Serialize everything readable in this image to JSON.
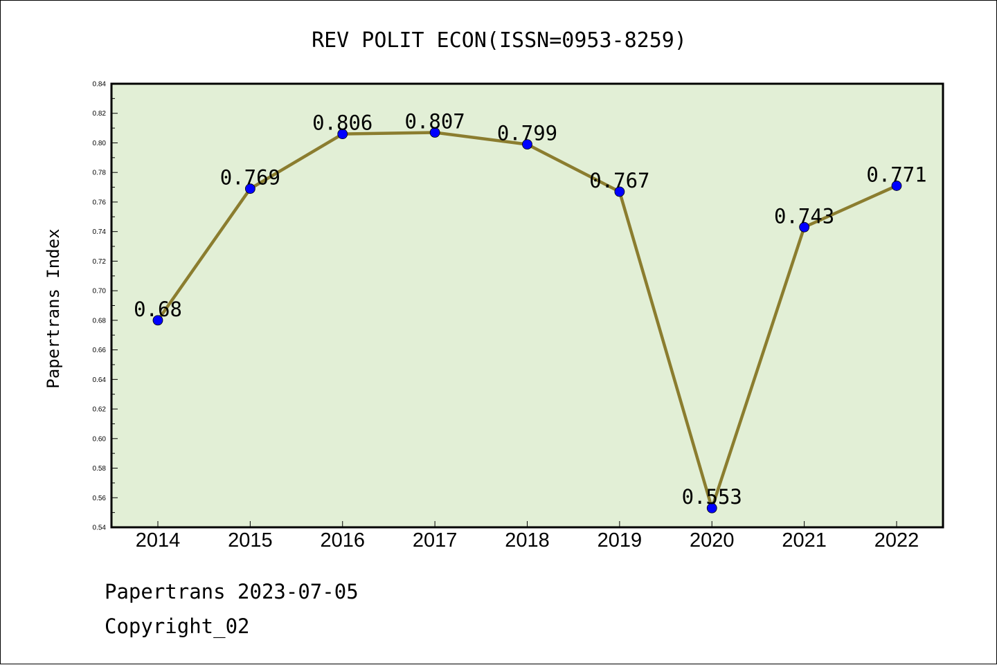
{
  "chart_data": {
    "type": "line",
    "title": "REV POLIT ECON(ISSN=0953-8259)",
    "xlabel": "",
    "ylabel": "Papertrans Index",
    "categories": [
      "2014",
      "2015",
      "2016",
      "2017",
      "2018",
      "2019",
      "2020",
      "2021",
      "2022"
    ],
    "values": [
      0.68,
      0.769,
      0.806,
      0.807,
      0.799,
      0.767,
      0.553,
      0.743,
      0.771
    ],
    "data_labels": [
      "0.68",
      "0.769",
      "0.806",
      "0.807",
      "0.799",
      "0.767",
      "0.553",
      "0.743",
      "0.771"
    ],
    "ylim": [
      0.54,
      0.84
    ],
    "yticks": [
      "0.54",
      "0.56",
      "0.58",
      "0.60",
      "0.62",
      "0.64",
      "0.66",
      "0.68",
      "0.70",
      "0.72",
      "0.74",
      "0.76",
      "0.78",
      "0.80",
      "0.82",
      "0.84"
    ],
    "grid": false,
    "legend": "none",
    "colors": {
      "plot_bg": "#e2efd6",
      "line": "#8b7d2f",
      "marker": "#0000ff"
    }
  },
  "footer": {
    "line1": "Papertrans 2023-07-05",
    "line2": "Copyright_02"
  }
}
